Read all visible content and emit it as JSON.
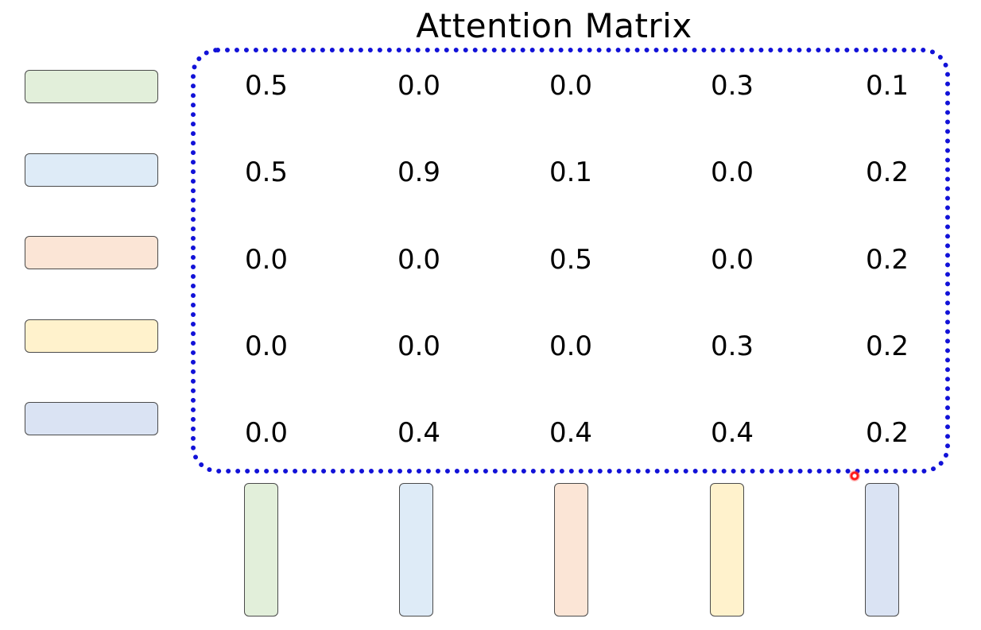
{
  "title": "Attention Matrix",
  "colors": {
    "frame": "#1212d8",
    "token_fills": [
      "#e2efda",
      "#deebf7",
      "#fbe5d6",
      "#fff2cc",
      "#dae3f3"
    ]
  },
  "matrix": [
    [
      "0.5",
      "0.0",
      "0.0",
      "0.3",
      "0.1"
    ],
    [
      "0.5",
      "0.9",
      "0.1",
      "0.0",
      "0.2"
    ],
    [
      "0.0",
      "0.0",
      "0.5",
      "0.0",
      "0.2"
    ],
    [
      "0.0",
      "0.0",
      "0.0",
      "0.3",
      "0.2"
    ],
    [
      "0.0",
      "0.4",
      "0.4",
      "0.4",
      "0.2"
    ]
  ]
}
